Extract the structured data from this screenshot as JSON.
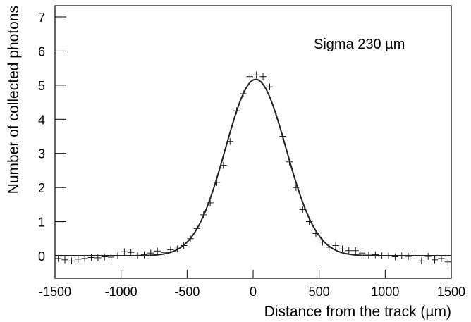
{
  "chart_data": {
    "type": "scatter",
    "x_label": "Distance from the track (µm)",
    "y_label": "Number of collected photons",
    "annotation": "Sigma 230 µm",
    "x": [
      -1475,
      -1425,
      -1375,
      -1325,
      -1275,
      -1225,
      -1175,
      -1125,
      -1075,
      -1025,
      -975,
      -925,
      -875,
      -825,
      -775,
      -725,
      -675,
      -625,
      -575,
      -525,
      -475,
      -425,
      -375,
      -325,
      -275,
      -225,
      -175,
      -125,
      -75,
      -25,
      25,
      75,
      125,
      175,
      225,
      275,
      325,
      375,
      425,
      475,
      525,
      575,
      625,
      675,
      725,
      775,
      825,
      875,
      925,
      975,
      1025,
      1075,
      1125,
      1175,
      1225,
      1275,
      1325,
      1375,
      1425,
      1475
    ],
    "series": [
      {
        "color": "#000000",
        "values": [
          -0.08,
          -0.12,
          -0.15,
          -0.1,
          -0.08,
          -0.05,
          -0.06,
          -0.03,
          -0.04,
          0.0,
          0.12,
          0.1,
          0.0,
          0.03,
          0.08,
          0.14,
          0.1,
          0.18,
          0.2,
          0.3,
          0.5,
          0.8,
          1.2,
          1.55,
          2.15,
          2.65,
          3.35,
          4.25,
          4.75,
          5.25,
          5.3,
          5.25,
          4.95,
          4.1,
          3.5,
          2.75,
          2.0,
          1.35,
          1.0,
          0.65,
          0.4,
          0.25,
          0.3,
          0.2,
          0.15,
          0.15,
          0.08,
          0.02,
          0.03,
          0.0,
          0.0,
          -0.03,
          0.0,
          -0.02,
          0.0,
          -0.15,
          -0.02,
          -0.12,
          -0.08,
          -0.18
        ]
      }
    ],
    "x_error": 25,
    "y_error": 0.1,
    "fit": {
      "type": "gaussian",
      "constant": 5.17,
      "mean": 20,
      "sigma": 230
    },
    "xlim": [
      -1500,
      1500
    ],
    "ylim": [
      -0.66,
      7.33
    ],
    "xticks": [
      -1500,
      -1000,
      -500,
      0,
      500,
      1000,
      1500
    ],
    "yticks": [
      0,
      1,
      2,
      3,
      4,
      5,
      6,
      7
    ]
  }
}
